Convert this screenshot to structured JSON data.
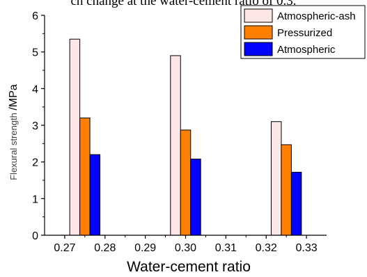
{
  "caption_fragment": "ch change at the water-cement ratio of 0.3.",
  "chart_data": {
    "type": "bar",
    "xlabel": "Water-cement ratio",
    "ylabel": "Flexural strength /MPa",
    "ylim": [
      0,
      6
    ],
    "yticks": [
      "0",
      "1",
      "2",
      "3",
      "4",
      "5",
      "6"
    ],
    "xticks": [
      "0.27",
      "0.28",
      "0.29",
      "0.30",
      "0.31",
      "0.32",
      "0.33"
    ],
    "xlim": [
      0.265,
      0.335
    ],
    "legend_position": "top-right",
    "series": [
      {
        "name": "Atmospheric-ash",
        "color": "#fde6e6",
        "x": [
          0.2725,
          0.2975,
          0.3225
        ],
        "values": [
          5.35,
          4.9,
          3.1
        ]
      },
      {
        "name": "Pressurized",
        "color": "#ff7f00",
        "x": [
          0.275,
          0.3,
          0.325
        ],
        "values": [
          3.2,
          2.87,
          2.47
        ]
      },
      {
        "name": "Atmospheric",
        "color": "#0000ff",
        "x": [
          0.2775,
          0.3025,
          0.3275
        ],
        "values": [
          2.2,
          2.08,
          1.72
        ]
      }
    ]
  }
}
